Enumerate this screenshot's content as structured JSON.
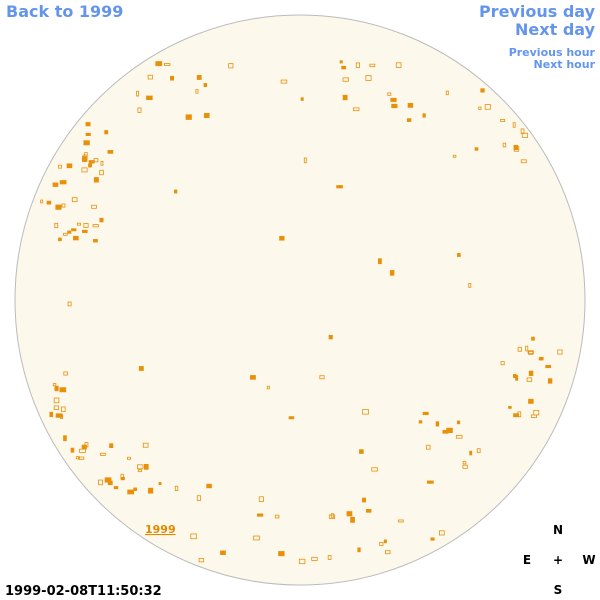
{
  "links": {
    "back": "Back to 1999",
    "previous_day": "Previous day",
    "next_day": "Next day",
    "previous_hour": "Previous hour",
    "next_hour": "Next hour"
  },
  "disk_label": "1999",
  "compass": {
    "north": "N",
    "east": "E",
    "center": "+",
    "west": "W",
    "south": "S"
  },
  "timestamp": "1999-02-08T11:50:32"
}
